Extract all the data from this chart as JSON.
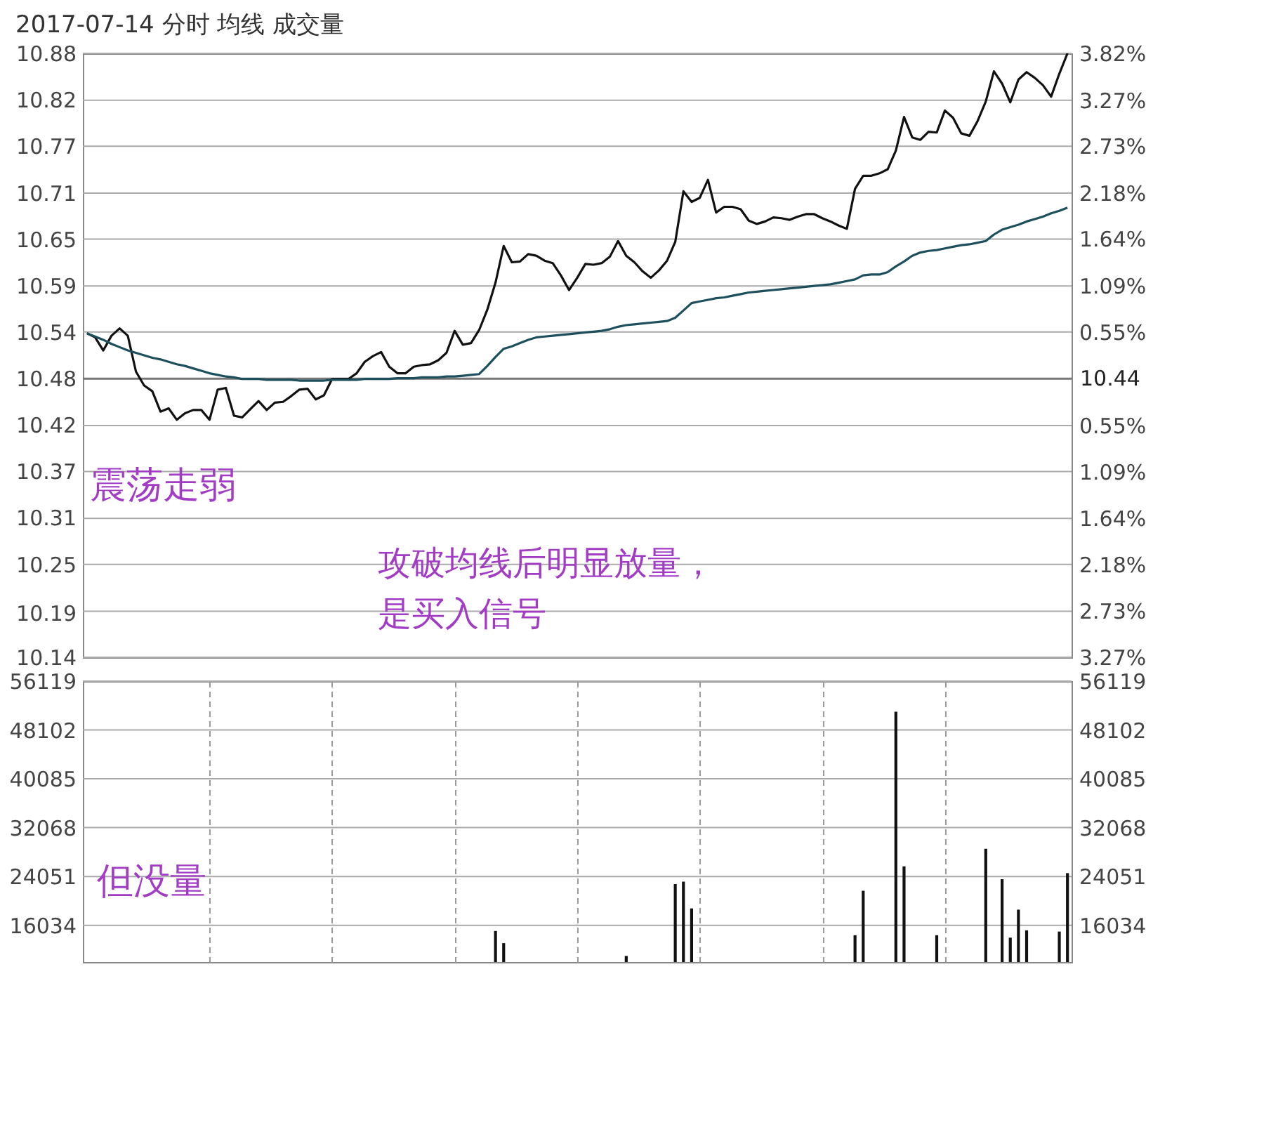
{
  "chart_data": [
    {
      "type": "line",
      "title": "2017-07-14 分时 均线 成交量",
      "categories": [
        null,
        null,
        null,
        null,
        null,
        null,
        null,
        null,
        null,
        null,
        null,
        null,
        null,
        null,
        null,
        null,
        null,
        null,
        null,
        null,
        null,
        null,
        null,
        null,
        null,
        null,
        null,
        null,
        null,
        null,
        null,
        null,
        null,
        null,
        null,
        null,
        null,
        null,
        null,
        null,
        null,
        null,
        null,
        null,
        null,
        null,
        null,
        null,
        null,
        null,
        null,
        null,
        null,
        null,
        null,
        null,
        null,
        null,
        null,
        null,
        null,
        null,
        null,
        null,
        null,
        null,
        null,
        null,
        null,
        null,
        null,
        null,
        null,
        null,
        null,
        null,
        null,
        null,
        null,
        null,
        null,
        null,
        null,
        null,
        null,
        null,
        null,
        null,
        null,
        null,
        null,
        null,
        null,
        null,
        null,
        null,
        null,
        null,
        null,
        null,
        null,
        null,
        null,
        null,
        null,
        null,
        null,
        null,
        null,
        null,
        null,
        null,
        null,
        null,
        null,
        null,
        null,
        null,
        null,
        null,
        null
      ],
      "ylim": [
        10.14,
        10.88
      ],
      "yticks": [
        10.14,
        {
          "value": 10.194,
          "label": "10.19"
        },
        {
          "value": 10.254,
          "label": "10.25"
        },
        {
          "value": 10.311,
          "label": "10.31"
        },
        {
          "value": 10.368,
          "label": "10.37"
        },
        {
          "value": 10.425,
          "label": "10.42"
        },
        {
          "value": 10.482,
          "label": "10.48"
        },
        {
          "value": 10.538,
          "label": "10.54"
        },
        {
          "value": 10.595,
          "label": "10.59"
        },
        {
          "value": 10.652,
          "label": "10.65"
        },
        {
          "value": 10.709,
          "label": "10.71"
        },
        {
          "value": 10.766,
          "label": "10.77"
        },
        {
          "value": 10.823,
          "label": "10.82"
        },
        10.88
      ],
      "y2lim": [
        -3.27,
        3.82
      ],
      "y2ticks": [
        {
          "value": -3.27,
          "label": "3.27%"
        },
        {
          "value": -2.73,
          "label": "2.73%"
        },
        {
          "value": -2.18,
          "label": "2.18%"
        },
        {
          "value": -1.64,
          "label": "1.64%"
        },
        {
          "value": -1.09,
          "label": "1.09%"
        },
        {
          "value": -0.55,
          "label": "0.55%"
        },
        {
          "value": 0.55,
          "label": "0.55%"
        },
        {
          "value": 1.09,
          "label": "1.09%"
        },
        {
          "value": 1.64,
          "label": "1.64%"
        },
        {
          "value": 2.18,
          "label": "2.18%"
        },
        {
          "value": 2.73,
          "label": "2.73%"
        },
        {
          "value": 3.27,
          "label": "3.27%"
        },
        {
          "value": 3.82,
          "label": "3.82%"
        }
      ],
      "ref_lines": [
        {
          "axis": "y2",
          "value": 0,
          "color": "#777777"
        }
      ],
      "grid": true,
      "series": [
        {
          "color": "#111111",
          "values": [
            10.537,
            10.532,
            10.516,
            10.534,
            10.543,
            10.534,
            10.49,
            10.473,
            10.466,
            10.441,
            10.445,
            10.431,
            10.439,
            10.443,
            10.443,
            10.431,
            10.468,
            10.47,
            10.436,
            10.434,
            10.444,
            10.454,
            10.443,
            10.452,
            10.453,
            10.46,
            10.468,
            10.469,
            10.456,
            10.461,
            10.481,
            10.481,
            10.481,
            10.488,
            10.502,
            10.509,
            10.514,
            10.496,
            10.488,
            10.488,
            10.496,
            10.498,
            10.499,
            10.504,
            10.513,
            10.54,
            10.523,
            10.525,
            10.541,
            10.566,
            10.599,
            10.644,
            10.624,
            10.625,
            10.634,
            10.632,
            10.626,
            10.623,
            10.608,
            10.59,
            10.605,
            10.622,
            10.621,
            10.623,
            10.631,
            10.65,
            10.632,
            10.624,
            10.613,
            10.605,
            10.614,
            10.626,
            10.649,
            10.711,
            10.698,
            10.703,
            10.725,
            10.685,
            10.692,
            10.692,
            10.689,
            10.675,
            10.671,
            10.674,
            10.679,
            10.678,
            10.676,
            10.68,
            10.683,
            10.683,
            10.678,
            10.674,
            10.669,
            10.665,
            10.714,
            10.73,
            10.73,
            10.733,
            10.738,
            10.761,
            10.802,
            10.777,
            10.774,
            10.784,
            10.783,
            10.81,
            10.801,
            10.782,
            10.779,
            10.797,
            10.821,
            10.858,
            10.843,
            10.82,
            10.848,
            10.857,
            10.85,
            10.841,
            10.827,
            10.855,
            10.88
          ]
        },
        {
          "color": "#1d4f5c",
          "values": [
            10.537,
            10.533,
            10.529,
            10.524,
            10.52,
            10.516,
            10.513,
            10.51,
            10.507,
            10.505,
            10.502,
            10.499,
            10.497,
            10.494,
            10.491,
            10.488,
            10.486,
            10.484,
            10.483,
            10.481,
            10.481,
            10.481,
            10.48,
            10.48,
            10.48,
            10.48,
            10.479,
            10.479,
            10.479,
            10.479,
            10.48,
            10.48,
            10.48,
            10.48,
            10.481,
            10.481,
            10.481,
            10.481,
            10.482,
            10.482,
            10.482,
            10.483,
            10.483,
            10.483,
            10.484,
            10.484,
            10.485,
            10.486,
            10.487,
            10.497,
            10.508,
            10.518,
            10.521,
            10.525,
            10.529,
            10.532,
            10.533,
            10.534,
            10.535,
            10.536,
            10.537,
            10.538,
            10.539,
            10.54,
            10.542,
            10.545,
            10.547,
            10.548,
            10.549,
            10.55,
            10.551,
            10.552,
            10.556,
            10.565,
            10.574,
            10.576,
            10.578,
            10.58,
            10.581,
            10.583,
            10.585,
            10.587,
            10.588,
            10.589,
            10.59,
            10.591,
            10.592,
            10.593,
            10.594,
            10.595,
            10.596,
            10.597,
            10.599,
            10.601,
            10.603,
            10.608,
            10.609,
            10.609,
            10.612,
            10.619,
            10.625,
            10.632,
            10.636,
            10.638,
            10.639,
            10.641,
            10.643,
            10.645,
            10.646,
            10.648,
            10.65,
            10.658,
            10.664,
            10.667,
            10.67,
            10.674,
            10.677,
            10.68,
            10.684,
            10.687,
            10.691
          ]
        }
      ],
      "annotations": [
        "震荡走弱",
        "攻破均线后明显放量，",
        "是买入信号",
        "10.44"
      ]
    },
    {
      "type": "bar",
      "categories": [
        null,
        null,
        null,
        null,
        null,
        null,
        null,
        null,
        null,
        null,
        null,
        null,
        null,
        null,
        null,
        null,
        null,
        null,
        null,
        null,
        null,
        null,
        null,
        null,
        null,
        null,
        null,
        null,
        null,
        null,
        null,
        null,
        null,
        null,
        null,
        null,
        null,
        null,
        null,
        null,
        null,
        null,
        null,
        null,
        null,
        null,
        null,
        null,
        null,
        null,
        null,
        null,
        null,
        null,
        null,
        null,
        null,
        null,
        null,
        null,
        null,
        null,
        null,
        null,
        null,
        null,
        null,
        null,
        null,
        null,
        null,
        null,
        null,
        null,
        null,
        null,
        null,
        null,
        null,
        null,
        null,
        null,
        null,
        null,
        null,
        null,
        null,
        null,
        null,
        null,
        null,
        null,
        null,
        null,
        null,
        null,
        null,
        null,
        null,
        null,
        null,
        null,
        null,
        null,
        null,
        null,
        null,
        null,
        null,
        null,
        null,
        null,
        null,
        null,
        null,
        null,
        null,
        null,
        null,
        null,
        null
      ],
      "ylim": [
        10000,
        56119
      ],
      "yticks": [
        16034,
        24051,
        32068,
        40085,
        48102,
        56119
      ],
      "y2lim": [
        10000,
        56119
      ],
      "y2ticks": [
        16034,
        24051,
        32068,
        40085,
        48102,
        56119
      ],
      "grid": true,
      "series": [
        {
          "color": "#111111",
          "values": [
            null,
            null,
            null,
            null,
            null,
            null,
            null,
            null,
            null,
            null,
            null,
            null,
            null,
            null,
            null,
            null,
            null,
            null,
            null,
            null,
            null,
            null,
            null,
            null,
            null,
            null,
            null,
            null,
            null,
            null,
            null,
            null,
            null,
            null,
            null,
            null,
            null,
            null,
            null,
            null,
            null,
            null,
            null,
            null,
            null,
            null,
            null,
            null,
            null,
            null,
            15100,
            13100,
            null,
            null,
            null,
            null,
            null,
            null,
            null,
            null,
            null,
            null,
            null,
            null,
            null,
            null,
            11000,
            null,
            null,
            null,
            null,
            null,
            22800,
            23200,
            18800,
            null,
            null,
            null,
            null,
            null,
            null,
            null,
            null,
            null,
            null,
            null,
            null,
            null,
            null,
            null,
            null,
            null,
            null,
            null,
            14400,
            21700,
            null,
            null,
            null,
            51100,
            25700,
            null,
            null,
            null,
            14400,
            null,
            null,
            null,
            null,
            null,
            28600,
            null,
            23600,
            14000,
            18600,
            15200,
            null,
            null,
            null,
            15000,
            24600
          ]
        }
      ],
      "annotations": [
        "但没量"
      ]
    }
  ]
}
